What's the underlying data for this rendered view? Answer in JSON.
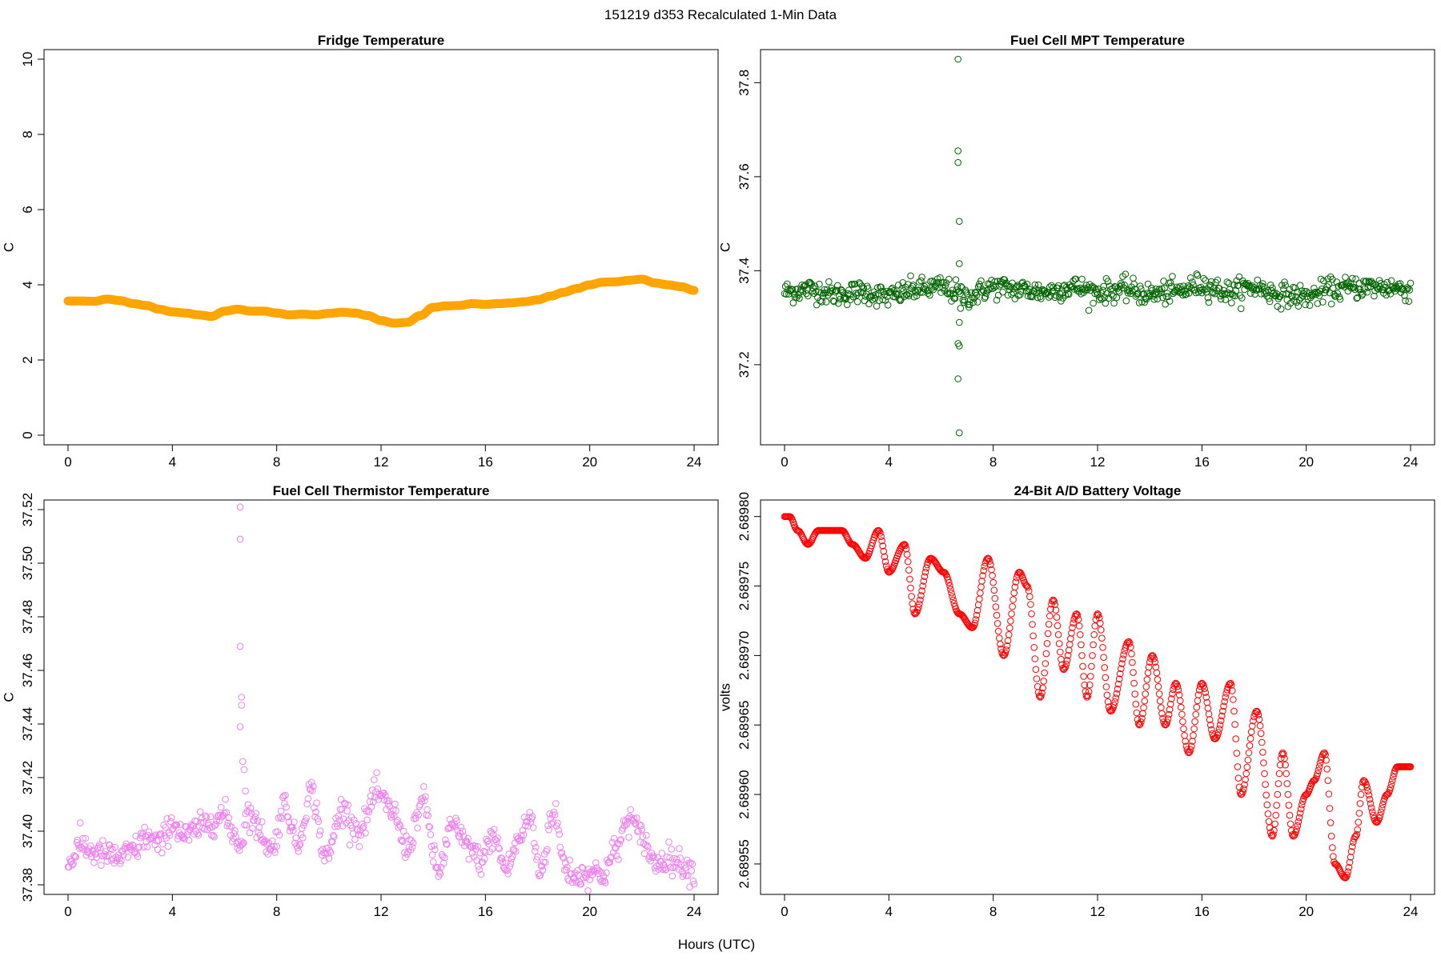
{
  "figure": {
    "suptitle": "151219   d353   Recalculated 1-Min Data",
    "xlabel": "Hours (UTC)"
  },
  "chart_data": [
    {
      "type": "scatter",
      "title": "Fridge Temperature",
      "xlabel": "",
      "ylabel": "C",
      "color": "#ffa500",
      "marker": "filled",
      "xlim": [
        0,
        24
      ],
      "ylim": [
        0,
        10
      ],
      "xticks": [
        0,
        4,
        8,
        12,
        16,
        20,
        24
      ],
      "yticks": [
        0,
        2,
        4,
        6,
        8,
        10
      ],
      "ytick_labels": [
        "0",
        "2",
        "4",
        "6",
        "8",
        "10"
      ],
      "x": [
        0,
        0.5,
        1,
        1.5,
        2,
        2.5,
        3,
        3.5,
        4,
        4.5,
        5,
        5.5,
        6,
        6.5,
        7,
        7.5,
        8,
        8.5,
        9,
        9.5,
        10,
        10.5,
        11,
        11.5,
        12,
        12.5,
        13,
        13.5,
        14,
        14.5,
        15,
        15.5,
        16,
        16.5,
        17,
        17.5,
        18,
        18.5,
        19,
        19.5,
        20,
        20.5,
        21,
        21.5,
        22,
        22.5,
        23,
        23.5,
        24
      ],
      "y": [
        3.57,
        3.57,
        3.56,
        3.62,
        3.58,
        3.5,
        3.45,
        3.35,
        3.28,
        3.25,
        3.2,
        3.16,
        3.3,
        3.35,
        3.3,
        3.3,
        3.25,
        3.2,
        3.22,
        3.2,
        3.24,
        3.27,
        3.25,
        3.18,
        3.05,
        2.98,
        3.0,
        3.18,
        3.4,
        3.44,
        3.45,
        3.5,
        3.48,
        3.5,
        3.52,
        3.55,
        3.6,
        3.7,
        3.8,
        3.9,
        4.0,
        4.07,
        4.08,
        4.12,
        4.15,
        4.05,
        4.0,
        3.95,
        3.85
      ]
    },
    {
      "type": "scatter",
      "title": "Fuel Cell MPT Temperature",
      "xlabel": "",
      "ylabel": "C",
      "color": "#006400",
      "marker": "open",
      "xlim": [
        0,
        24
      ],
      "ylim": [
        37.05,
        37.85
      ],
      "xticks": [
        0,
        4,
        8,
        12,
        16,
        20,
        24
      ],
      "yticks": [
        37.2,
        37.4,
        37.6,
        37.8
      ],
      "ytick_labels": [
        "37.2",
        "37.4",
        "37.6",
        "37.8"
      ],
      "baseline": {
        "x": [
          0,
          1,
          2,
          3,
          4,
          5,
          6,
          6.5,
          7,
          8,
          9,
          10,
          11,
          12,
          13,
          14,
          15,
          16,
          17,
          18,
          19,
          20,
          21,
          22,
          23,
          24
        ],
        "y": [
          37.355,
          37.36,
          37.35,
          37.355,
          37.345,
          37.36,
          37.365,
          37.355,
          37.345,
          37.365,
          37.36,
          37.355,
          37.365,
          37.355,
          37.36,
          37.35,
          37.355,
          37.37,
          37.355,
          37.365,
          37.35,
          37.345,
          37.36,
          37.365,
          37.365,
          37.36
        ],
        "noise": 0.012
      },
      "outliers": {
        "x": [
          6.65,
          6.65,
          6.65,
          6.7,
          6.7,
          6.65,
          6.7,
          6.7,
          6.65,
          6.7,
          6.75
        ],
        "y": [
          37.85,
          37.655,
          37.63,
          37.505,
          37.415,
          37.245,
          37.24,
          37.29,
          37.17,
          37.055,
          37.32
        ]
      }
    },
    {
      "type": "scatter",
      "title": "Fuel Cell Thermistor Temperature",
      "xlabel": "",
      "ylabel": "C",
      "color": "#ee82ee",
      "marker": "open",
      "xlim": [
        0,
        24
      ],
      "ylim": [
        37.38,
        37.52
      ],
      "xticks": [
        0,
        4,
        8,
        12,
        16,
        20,
        24
      ],
      "yticks": [
        37.38,
        37.4,
        37.42,
        37.44,
        37.46,
        37.48,
        37.5,
        37.52
      ],
      "ytick_labels": [
        "37.38",
        "37.40",
        "37.42",
        "37.44",
        "37.46",
        "37.48",
        "37.50",
        "37.52"
      ],
      "baseline": {
        "x": [
          0,
          0.5,
          1,
          1.5,
          2,
          2.5,
          3,
          3.5,
          4,
          4.5,
          5,
          5.5,
          6,
          6.3,
          6.6,
          6.9,
          7.3,
          7.8,
          8.3,
          8.8,
          9.3,
          9.9,
          10.5,
          11.2,
          11.8,
          12.4,
          13,
          13.6,
          14.2,
          14.7,
          15.3,
          15.8,
          16.3,
          16.8,
          17.3,
          17.7,
          18.1,
          18.6,
          19.1,
          19.5,
          20,
          20.5,
          21,
          21.5,
          22,
          22.5,
          23,
          23.5,
          24
        ],
        "y": [
          37.388,
          37.395,
          37.392,
          37.391,
          37.39,
          37.393,
          37.398,
          37.395,
          37.403,
          37.398,
          37.401,
          37.404,
          37.406,
          37.4,
          37.395,
          37.407,
          37.401,
          37.393,
          37.41,
          37.395,
          37.415,
          37.39,
          37.408,
          37.4,
          37.414,
          37.408,
          37.394,
          37.411,
          37.385,
          37.402,
          37.395,
          37.389,
          37.398,
          37.386,
          37.397,
          37.405,
          37.385,
          37.407,
          37.386,
          37.383,
          37.385,
          37.384,
          37.393,
          37.405,
          37.398,
          37.388,
          37.39,
          37.388,
          37.385
        ],
        "noise": 0.0025
      },
      "outliers": {
        "x": [
          6.6,
          6.6,
          6.6,
          6.65,
          6.65,
          6.6,
          6.7,
          6.75,
          6.8
        ],
        "y": [
          37.521,
          37.509,
          37.469,
          37.45,
          37.447,
          37.439,
          37.426,
          37.423,
          37.415
        ]
      }
    },
    {
      "type": "scatter",
      "title": "24-Bit A/D Battery Voltage",
      "xlabel": "",
      "ylabel": "volts",
      "color": "#ff0000",
      "marker": "open",
      "xlim": [
        0,
        24
      ],
      "ylim": [
        2.689535,
        2.689805
      ],
      "xticks": [
        0,
        4,
        8,
        12,
        16,
        20,
        24
      ],
      "yticks": [
        2.68955,
        2.6896,
        2.68965,
        2.6897,
        2.68975,
        2.6898
      ],
      "ytick_labels": [
        "2.68955",
        "2.68960",
        "2.68965",
        "2.68970",
        "2.68975",
        "2.68980"
      ],
      "x": [
        0,
        0.2,
        0.5,
        0.9,
        1.3,
        1.7,
        2.2,
        2.6,
        3.1,
        3.6,
        4.0,
        4.6,
        5.0,
        5.6,
        6.1,
        6.7,
        7.2,
        7.8,
        8.4,
        9.0,
        9.3,
        9.8,
        10.3,
        10.7,
        11.2,
        11.6,
        12.0,
        12.5,
        13.2,
        13.6,
        14.1,
        14.6,
        15.0,
        15.5,
        16.0,
        16.5,
        17.1,
        17.5,
        18.1,
        18.7,
        19.1,
        19.5,
        20.0,
        20.3,
        20.7,
        21.1,
        21.5,
        21.9,
        22.2,
        22.7,
        23.1,
        23.5,
        24.0
      ],
      "y": [
        2.6898,
        2.6898,
        2.68979,
        2.68978,
        2.68979,
        2.68979,
        2.68979,
        2.68978,
        2.68977,
        2.68979,
        2.68976,
        2.68978,
        2.68973,
        2.68977,
        2.68976,
        2.68973,
        2.68972,
        2.68977,
        2.6897,
        2.68976,
        2.68975,
        2.68967,
        2.68974,
        2.68969,
        2.68973,
        2.68967,
        2.68973,
        2.68966,
        2.68971,
        2.68965,
        2.6897,
        2.68965,
        2.68968,
        2.68963,
        2.68968,
        2.68964,
        2.68968,
        2.6896,
        2.68966,
        2.68957,
        2.68963,
        2.68957,
        2.6896,
        2.68961,
        2.68963,
        2.68955,
        2.68954,
        2.68957,
        2.68961,
        2.68958,
        2.6896,
        2.68962,
        2.68962
      ]
    }
  ]
}
